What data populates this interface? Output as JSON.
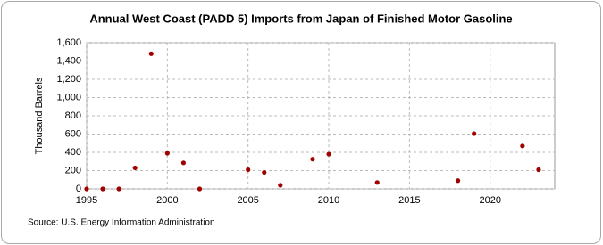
{
  "chart_data": {
    "type": "scatter",
    "title": "Annual West Coast (PADD 5) Imports from Japan of Finished Motor Gasoline",
    "y_label": "Thousand Barrels",
    "source": "Source: U.S. Energy Information Administration",
    "x": [
      1995,
      1996,
      1997,
      1998,
      1999,
      2000,
      2001,
      2002,
      2005,
      2006,
      2007,
      2009,
      2010,
      2013,
      2018,
      2019,
      2022,
      2023
    ],
    "values": [
      0,
      0,
      0,
      230,
      1480,
      390,
      285,
      0,
      210,
      180,
      40,
      325,
      380,
      70,
      90,
      605,
      470,
      210
    ],
    "color": "#a00000",
    "xlim": [
      1995,
      2024
    ],
    "xticks": [
      1995,
      2000,
      2005,
      2010,
      2015,
      2020
    ],
    "ylim": [
      0,
      1600
    ],
    "yticks": [
      0,
      200,
      400,
      600,
      800,
      {
        "value": 1000,
        "label": "1,000"
      },
      {
        "value": 1200,
        "label": "1,200"
      },
      {
        "value": 1400,
        "label": "1,400"
      },
      {
        "value": 1600,
        "label": "1,600"
      }
    ],
    "grid": true
  }
}
